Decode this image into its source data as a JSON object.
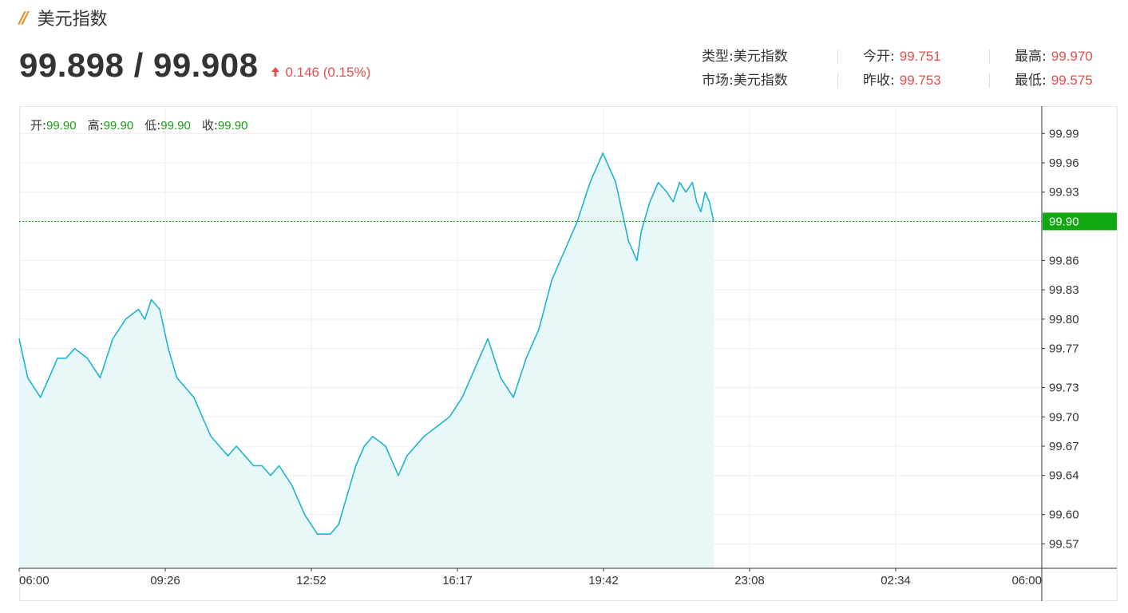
{
  "header": {
    "title": "美元指数",
    "price": "99.898 / 99.908",
    "change": "0.146 (0.15%)"
  },
  "info": {
    "type_label": "类型:",
    "type_value": "美元指数",
    "market_label": "市场:",
    "market_value": "美元指数",
    "open_label": "今开:",
    "open_value": "99.751",
    "prev_close_label": "昨收:",
    "prev_close_value": "99.753",
    "high_label": "最高:",
    "high_value": "99.970",
    "low_label": "最低:",
    "low_value": "99.575"
  },
  "ohlc": {
    "open_label": "开:",
    "open": "99.90",
    "high_label": "高:",
    "high": "99.90",
    "low_label": "低:",
    "low": "99.90",
    "close_label": "收:",
    "close": "99.90"
  },
  "colors": {
    "line": "#1eb4cc",
    "area": "#e8f8f9",
    "up": "#e64c4c",
    "current": "#12a812",
    "grid": "#e8eef3"
  },
  "chart_data": {
    "type": "area",
    "y_ticks": [
      "99.99",
      "99.96",
      "99.93",
      "99.86",
      "99.83",
      "99.80",
      "99.77",
      "99.73",
      "99.70",
      "99.67",
      "99.64",
      "99.60",
      "99.57"
    ],
    "y_tick_values": [
      99.99,
      99.96,
      99.93,
      99.86,
      99.83,
      99.8,
      99.77,
      99.73,
      99.7,
      99.67,
      99.64,
      99.6,
      99.57
    ],
    "ylim": [
      99.545,
      100.018
    ],
    "x_ticks": [
      "06:00",
      "09:26",
      "12:52",
      "16:17",
      "19:42",
      "23:08",
      "02:34",
      "06:00"
    ],
    "current_value": 99.9,
    "current_label": "99.90",
    "series": [
      {
        "x": [
          0,
          0.1,
          0.2,
          0.35,
          0.5,
          0.7,
          0.9,
          1.1,
          1.3,
          1.6,
          1.9,
          2.2,
          2.5,
          2.8,
          2.95,
          3.1,
          3.3,
          3.5,
          3.7,
          3.9,
          4.1,
          4.3,
          4.5,
          4.7,
          4.9,
          5.1,
          5.3,
          5.5,
          5.7,
          5.9,
          6.1,
          6.4,
          6.7,
          7.0,
          7.3,
          7.5,
          7.7,
          7.9,
          8.1,
          8.3,
          8.6,
          8.8,
          8.9,
          9.1,
          9.3,
          9.5,
          9.8,
          10.1,
          10.4,
          10.7,
          11.0,
          11.3,
          11.6,
          11.9,
          12.2,
          12.5,
          12.8,
          13.1,
          13.4,
          13.7,
          14.0,
          14.3,
          14.5,
          14.6,
          14.8,
          15.0,
          15.2,
          15.35,
          15.5,
          15.65,
          15.8,
          15.9,
          16.0,
          16.1,
          16.2,
          16.3
        ],
        "y": [
          99.78,
          99.76,
          99.74,
          99.73,
          99.72,
          99.74,
          99.76,
          99.76,
          99.77,
          99.76,
          99.74,
          99.78,
          99.8,
          99.81,
          99.8,
          99.82,
          99.81,
          99.77,
          99.74,
          99.73,
          99.72,
          99.7,
          99.68,
          99.67,
          99.66,
          99.67,
          99.66,
          99.65,
          99.65,
          99.64,
          99.65,
          99.63,
          99.6,
          99.58,
          99.58,
          99.59,
          99.62,
          99.65,
          99.67,
          99.68,
          99.67,
          99.65,
          99.64,
          99.66,
          99.67,
          99.68,
          99.69,
          99.7,
          99.72,
          99.75,
          99.78,
          99.74,
          99.72,
          99.76,
          99.79,
          99.84,
          99.87,
          99.9,
          99.94,
          99.97,
          99.94,
          99.88,
          99.86,
          99.89,
          99.92,
          99.94,
          99.93,
          99.92,
          99.94,
          99.93,
          99.94,
          99.92,
          99.91,
          99.93,
          99.92,
          99.9
        ]
      }
    ]
  }
}
